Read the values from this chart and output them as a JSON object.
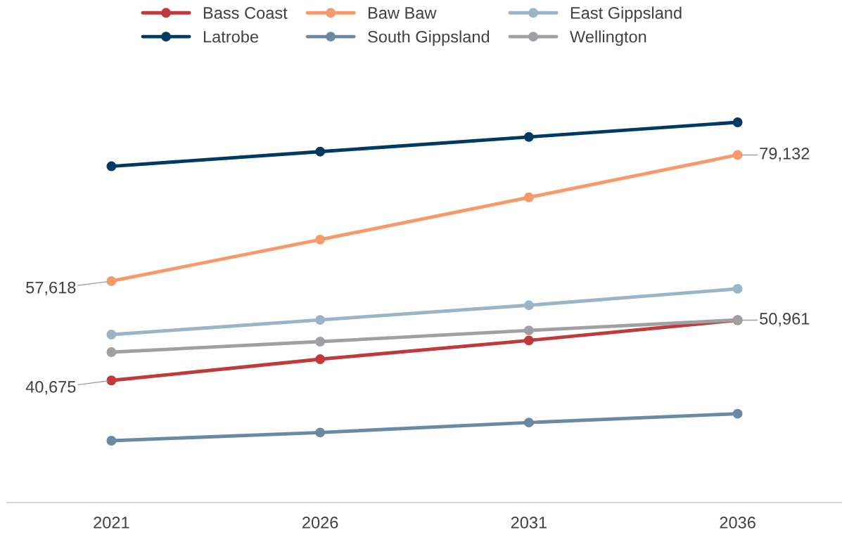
{
  "chart_data": {
    "type": "line",
    "categories": [
      "2021",
      "2026",
      "2031",
      "2036"
    ],
    "tick_labels": "x",
    "grid": false,
    "legend": "top",
    "marker": "circle",
    "line_style": "solid",
    "series": [
      {
        "name": "Bass Coast",
        "color": "#c0393b",
        "values": [
          40675,
          44300,
          47500,
          50961
        ],
        "value_labels": [
          "40,675",
          null,
          null,
          "50,961"
        ]
      },
      {
        "name": "Baw Baw",
        "color": "#f79a6a",
        "values": [
          57618,
          64700,
          71900,
          79132
        ],
        "value_labels": [
          "57,618",
          null,
          null,
          "79,132"
        ]
      },
      {
        "name": "East Gippsland",
        "color": "#9ab4c8",
        "values": [
          48500,
          51000,
          53500,
          56300
        ]
      },
      {
        "name": "Latrobe",
        "color": "#003a63",
        "values": [
          77200,
          79700,
          82200,
          84700
        ]
      },
      {
        "name": "South Gippsland",
        "color": "#6a8aa3",
        "values": [
          30400,
          31800,
          33500,
          35000
        ]
      },
      {
        "name": "Wellington",
        "color": "#a0a0a4",
        "values": [
          45500,
          47300,
          49200,
          51000
        ]
      }
    ]
  }
}
